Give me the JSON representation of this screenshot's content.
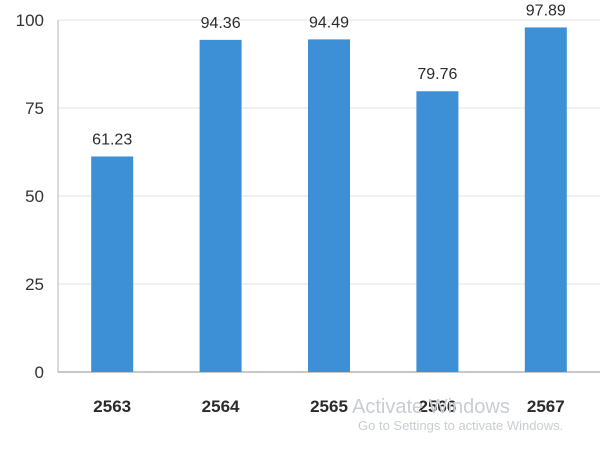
{
  "chart_data": {
    "type": "bar",
    "categories": [
      "2563",
      "2564",
      "2565",
      "2566",
      "2567"
    ],
    "values": [
      61.23,
      94.36,
      94.49,
      79.76,
      97.89
    ],
    "data_labels": [
      "61.23",
      "94.36",
      "94.49",
      "79.76",
      "97.89"
    ],
    "y_ticks": [
      0,
      25,
      50,
      75,
      100
    ],
    "ylim": [
      0,
      100
    ],
    "bar_color": "#3d8fd6",
    "grid": true,
    "grid_color": "#e3e3e3",
    "axis_color": "#b5b5b5",
    "legend": "none"
  },
  "watermark": {
    "title": "Activate Windows",
    "subtitle": "Go to Settings to activate Windows."
  }
}
